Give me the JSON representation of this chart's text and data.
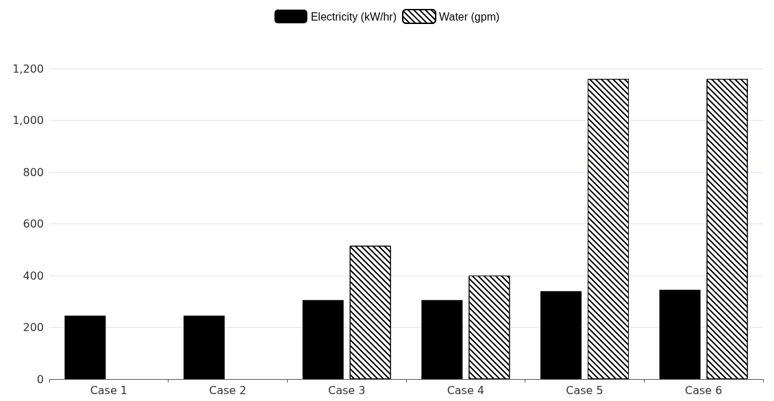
{
  "chart_data": {
    "type": "bar",
    "categories": [
      "Case 1",
      "Case 2",
      "Case 3",
      "Case 4",
      "Case 5",
      "Case 6"
    ],
    "series": [
      {
        "name": "Electricity (kW/hr)",
        "color": "#000000",
        "values": [
          245,
          245,
          305,
          305,
          340,
          345
        ]
      },
      {
        "name": "Water (gpm)",
        "color": "#000000",
        "values": [
          null,
          null,
          515,
          400,
          1160,
          1160
        ]
      }
    ],
    "ylim": [
      0,
      1200
    ],
    "yticks": [
      0,
      200,
      400,
      600,
      800,
      {
        "value": 1000,
        "label": "1,000"
      },
      {
        "value": 1200,
        "label": "1,200"
      }
    ],
    "grid": "y",
    "legend": "top"
  }
}
